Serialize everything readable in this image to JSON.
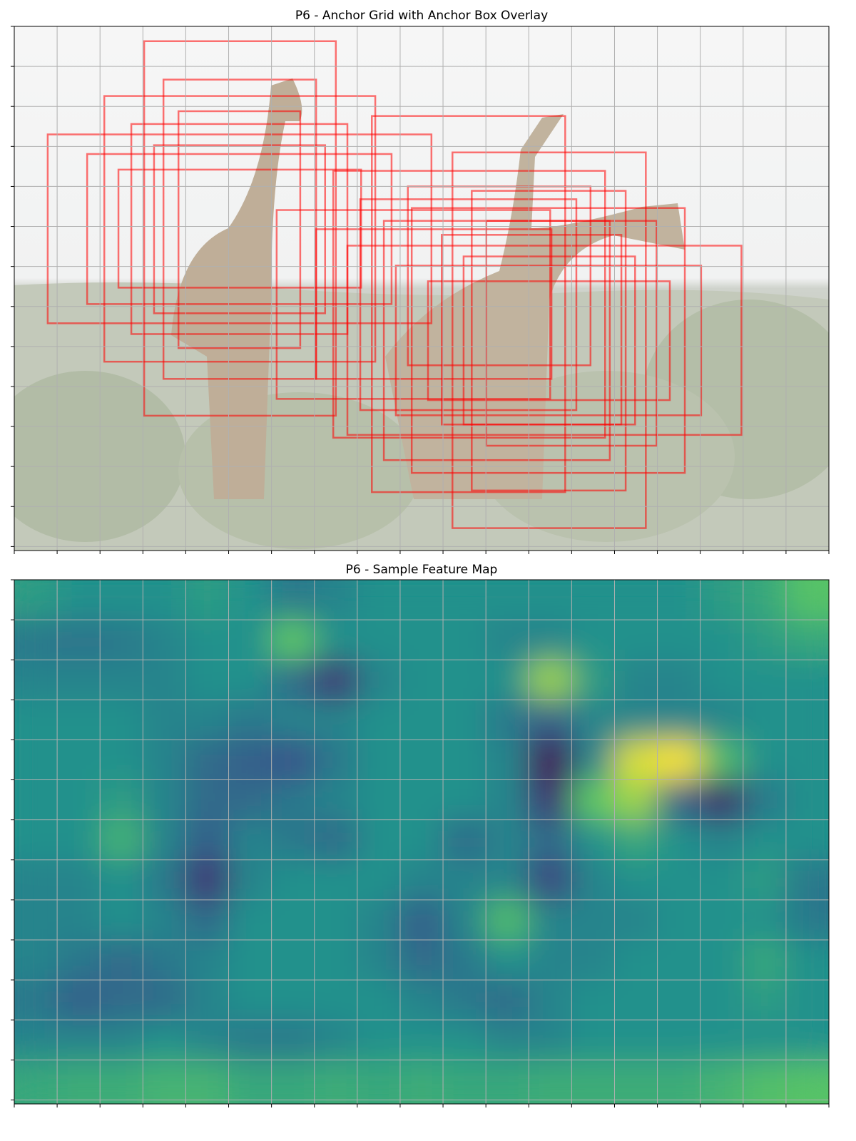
{
  "chart_data": [
    {
      "type": "anchor-boxes",
      "title": "P6 - Anchor Grid with Anchor Box Overlay",
      "xlim": [
        0,
        19
      ],
      "ylim": [
        13.1,
        0
      ],
      "xticks": [
        0,
        1,
        2,
        3,
        4,
        5,
        6,
        7,
        8,
        9,
        10,
        11,
        12,
        13,
        14,
        15,
        16,
        17,
        18,
        19
      ],
      "yticks": [
        0,
        1,
        2,
        3,
        4,
        5,
        6,
        7,
        8,
        9,
        10,
        11,
        12,
        13
      ],
      "grid": true,
      "color": "#ff0000",
      "boxes": [
        [
          3.03,
          0.37,
          7.5,
          9.73
        ],
        [
          2.1,
          1.74,
          8.42,
          8.38
        ],
        [
          3.48,
          1.33,
          7.04,
          8.81
        ],
        [
          0.78,
          2.7,
          9.73,
          7.42
        ],
        [
          2.73,
          2.44,
          7.77,
          7.69
        ],
        [
          3.83,
          2.12,
          6.67,
          8.04
        ],
        [
          1.7,
          3.19,
          8.8,
          6.94
        ],
        [
          3.26,
          2.97,
          7.25,
          7.17
        ],
        [
          2.43,
          3.58,
          8.09,
          6.53
        ],
        [
          8.34,
          2.24,
          12.85,
          11.64
        ],
        [
          10.22,
          3.15,
          14.73,
          12.54
        ],
        [
          7.44,
          3.61,
          13.78,
          10.28
        ],
        [
          9.18,
          4.0,
          13.44,
          8.47
        ],
        [
          10.67,
          4.11,
          14.26,
          11.6
        ],
        [
          8.07,
          4.32,
          13.11,
          9.59
        ],
        [
          9.27,
          4.54,
          15.64,
          11.16
        ],
        [
          6.12,
          4.59,
          12.5,
          9.31
        ],
        [
          8.62,
          4.86,
          13.89,
          10.84
        ],
        [
          11.01,
          4.86,
          14.98,
          10.48
        ],
        [
          7.04,
          5.07,
          12.53,
          8.81
        ],
        [
          9.97,
          5.21,
          14.16,
          9.95
        ],
        [
          7.77,
          5.48,
          16.96,
          10.21
        ],
        [
          10.48,
          5.75,
          14.48,
          9.95
        ],
        [
          8.9,
          5.98,
          16.02,
          9.72
        ],
        [
          9.65,
          6.37,
          15.29,
          9.34
        ]
      ]
    },
    {
      "type": "heatmap",
      "title": "P6 - Sample Feature Map",
      "xlim": [
        0,
        19
      ],
      "ylim": [
        13.1,
        0
      ],
      "xticks": [
        0,
        1,
        2,
        3,
        4,
        5,
        6,
        7,
        8,
        9,
        10,
        11,
        12,
        13,
        14,
        15,
        16,
        17,
        18,
        19
      ],
      "yticks": [
        0,
        1,
        2,
        3,
        4,
        5,
        6,
        7,
        8,
        9,
        10,
        11,
        12,
        13
      ],
      "grid": true,
      "colormap": "viridis",
      "values": [
        [
          0.55,
          0.5,
          0.5,
          0.5,
          0.55,
          0.5,
          0.4,
          0.45,
          0.5,
          0.5,
          0.5,
          0.5,
          0.5,
          0.5,
          0.5,
          0.5,
          0.55,
          0.6,
          0.72
        ],
        [
          0.4,
          0.38,
          0.4,
          0.45,
          0.5,
          0.5,
          0.75,
          0.5,
          0.5,
          0.5,
          0.5,
          0.45,
          0.45,
          0.5,
          0.5,
          0.5,
          0.5,
          0.55,
          0.6
        ],
        [
          0.45,
          0.45,
          0.45,
          0.45,
          0.5,
          0.5,
          0.35,
          0.15,
          0.45,
          0.5,
          0.5,
          0.5,
          0.85,
          0.55,
          0.45,
          0.45,
          0.5,
          0.5,
          0.5
        ],
        [
          0.5,
          0.5,
          0.5,
          0.45,
          0.45,
          0.4,
          0.45,
          0.45,
          0.5,
          0.5,
          0.5,
          0.4,
          0.3,
          0.45,
          0.45,
          0.45,
          0.45,
          0.5,
          0.5
        ],
        [
          0.5,
          0.5,
          0.5,
          0.45,
          0.35,
          0.3,
          0.25,
          0.4,
          0.5,
          0.5,
          0.5,
          0.45,
          0.0,
          0.45,
          0.95,
          1.0,
          0.7,
          0.5,
          0.5
        ],
        [
          0.5,
          0.5,
          0.55,
          0.45,
          0.35,
          0.35,
          0.4,
          0.45,
          0.5,
          0.5,
          0.5,
          0.45,
          0.15,
          0.75,
          0.85,
          0.3,
          0.1,
          0.4,
          0.5
        ],
        [
          0.5,
          0.5,
          0.65,
          0.45,
          0.3,
          0.45,
          0.4,
          0.35,
          0.5,
          0.5,
          0.35,
          0.45,
          0.35,
          0.5,
          0.6,
          0.5,
          0.45,
          0.5,
          0.5
        ],
        [
          0.45,
          0.45,
          0.5,
          0.4,
          0.15,
          0.45,
          0.5,
          0.5,
          0.5,
          0.45,
          0.45,
          0.45,
          0.2,
          0.45,
          0.5,
          0.5,
          0.5,
          0.55,
          0.4
        ],
        [
          0.45,
          0.45,
          0.5,
          0.45,
          0.35,
          0.5,
          0.5,
          0.5,
          0.45,
          0.3,
          0.45,
          0.7,
          0.45,
          0.45,
          0.45,
          0.5,
          0.5,
          0.5,
          0.4
        ],
        [
          0.45,
          0.4,
          0.35,
          0.4,
          0.45,
          0.5,
          0.5,
          0.5,
          0.45,
          0.35,
          0.4,
          0.5,
          0.45,
          0.45,
          0.5,
          0.5,
          0.5,
          0.6,
          0.5
        ],
        [
          0.4,
          0.3,
          0.35,
          0.35,
          0.45,
          0.5,
          0.5,
          0.5,
          0.5,
          0.45,
          0.4,
          0.35,
          0.45,
          0.5,
          0.5,
          0.5,
          0.5,
          0.55,
          0.5
        ],
        [
          0.45,
          0.45,
          0.45,
          0.5,
          0.45,
          0.4,
          0.4,
          0.45,
          0.5,
          0.5,
          0.5,
          0.45,
          0.45,
          0.5,
          0.5,
          0.5,
          0.5,
          0.5,
          0.5
        ],
        [
          0.6,
          0.62,
          0.62,
          0.65,
          0.65,
          0.6,
          0.6,
          0.62,
          0.6,
          0.62,
          0.6,
          0.6,
          0.62,
          0.62,
          0.62,
          0.62,
          0.65,
          0.7,
          0.72
        ]
      ]
    }
  ]
}
